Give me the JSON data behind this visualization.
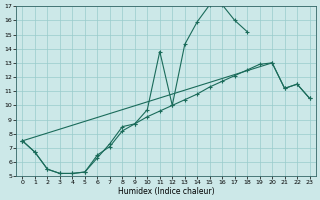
{
  "xlabel": "Humidex (Indice chaleur)",
  "xlim": [
    -0.5,
    23.5
  ],
  "ylim": [
    5,
    17
  ],
  "xticks": [
    0,
    1,
    2,
    3,
    4,
    5,
    6,
    7,
    8,
    9,
    10,
    11,
    12,
    13,
    14,
    15,
    16,
    17,
    18,
    19,
    20,
    21,
    22,
    23
  ],
  "yticks": [
    5,
    6,
    7,
    8,
    9,
    10,
    11,
    12,
    13,
    14,
    15,
    16,
    17
  ],
  "bg_color": "#cce8e8",
  "grid_color": "#99cccc",
  "line_color": "#1a6b5a",
  "line_a_x": [
    0,
    1,
    2,
    3,
    4,
    5,
    6,
    7,
    8,
    9,
    10,
    11,
    12,
    13,
    14,
    15,
    16,
    17,
    18
  ],
  "line_a_y": [
    7.5,
    6.7,
    5.5,
    5.2,
    5.2,
    5.3,
    6.3,
    7.3,
    8.5,
    8.7,
    9.7,
    13.8,
    10.0,
    14.3,
    15.9,
    17.1,
    17.1,
    16.0,
    15.2
  ],
  "line_b_x": [
    0,
    1,
    2,
    3,
    4,
    5,
    6,
    7,
    8,
    9,
    10,
    11,
    12,
    13,
    14,
    15,
    16,
    17,
    18,
    19,
    20,
    21,
    22,
    23
  ],
  "line_b_y": [
    7.5,
    6.7,
    5.5,
    5.2,
    5.2,
    5.3,
    6.5,
    7.1,
    8.2,
    8.7,
    9.2,
    9.6,
    10.0,
    10.4,
    10.8,
    11.3,
    11.7,
    12.1,
    12.5,
    12.9,
    13.0,
    11.2,
    11.5,
    10.5
  ],
  "line_c_x": [
    0,
    20,
    21,
    22,
    23
  ],
  "line_c_y": [
    7.5,
    13.0,
    11.2,
    11.5,
    10.5
  ]
}
